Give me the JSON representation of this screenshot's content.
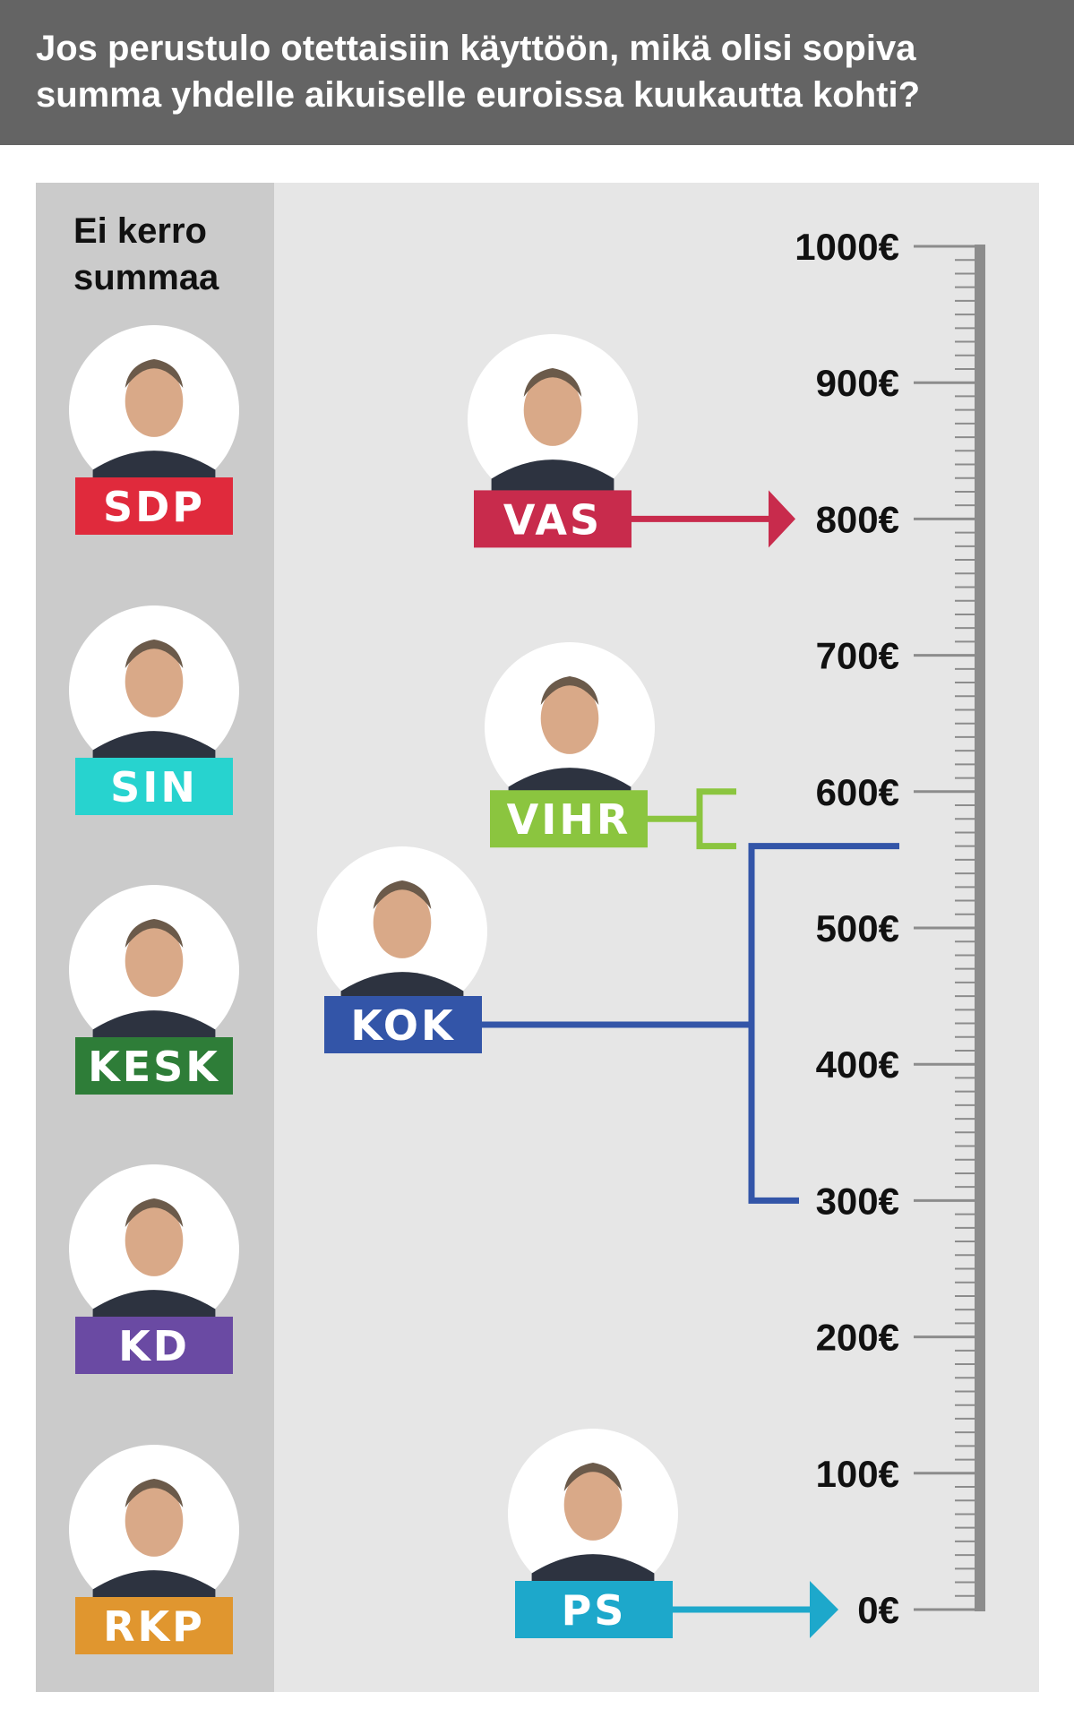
{
  "header": {
    "title": "Jos perustulo otettaisiin käyttöön, mikä olisi sopiva summa yhdelle aikuiselle euroissa kuukautta kohti?"
  },
  "left_column": {
    "heading": "Ei kerro summaa",
    "parties": [
      "SDP",
      "SIN",
      "KESK",
      "KD",
      "RKP"
    ]
  },
  "colors": {
    "header_bg": "#646464",
    "left_column_bg": "#cbcbcb",
    "plot_bg": "#e6e6e6",
    "ruler": "#8c8c8c",
    "SDP": "#e02a3c",
    "SIN": "#27d3cf",
    "KESK": "#2e7d38",
    "KD": "#6a4aa3",
    "RKP": "#e0962f",
    "VAS": "#c82b4c",
    "VIHR": "#8bc53f",
    "KOK": "#3355a8",
    "PS": "#1da8cb"
  },
  "chart_data": {
    "type": "scale",
    "title": "Jos perustulo otettaisiin käyttöön, mikä olisi sopiva summa yhdelle aikuiselle euroissa kuukautta kohti?",
    "ylim": [
      0,
      1000
    ],
    "ticks": [
      "0€",
      "100€",
      "200€",
      "300€",
      "400€",
      "500€",
      "600€",
      "700€",
      "800€",
      "900€",
      "1000€"
    ],
    "tick_values": [
      0,
      100,
      200,
      300,
      400,
      500,
      600,
      700,
      800,
      900,
      1000
    ],
    "minor_tick_step": 10,
    "positions": [
      {
        "party": "VAS",
        "kind": "point",
        "value": 800
      },
      {
        "party": "VIHR",
        "kind": "range",
        "low": 560,
        "high": 600
      },
      {
        "party": "KOK",
        "kind": "range",
        "low": 300,
        "high": 560
      },
      {
        "party": "PS",
        "kind": "point",
        "value": 0
      }
    ],
    "no_amount": [
      "SDP",
      "SIN",
      "KESK",
      "KD",
      "RKP"
    ]
  }
}
